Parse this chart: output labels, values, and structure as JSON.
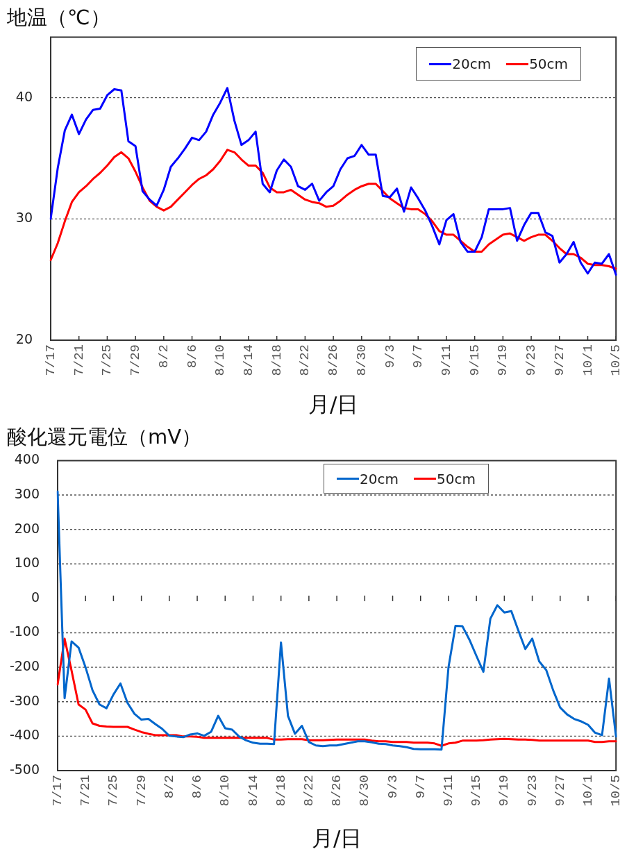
{
  "chart_data": [
    {
      "type": "line",
      "ylabel": "地温（℃）",
      "xlabel": "月/日",
      "categories": [
        "7/17",
        null,
        null,
        null,
        "7/21",
        null,
        null,
        null,
        "7/25",
        null,
        null,
        null,
        "7/29",
        null,
        null,
        null,
        "8/2",
        null,
        null,
        null,
        "8/6",
        null,
        null,
        null,
        "8/10",
        null,
        null,
        null,
        "8/14",
        null,
        null,
        null,
        "8/18",
        null,
        null,
        null,
        "8/22",
        null,
        null,
        null,
        "8/26",
        null,
        null,
        null,
        "8/30",
        null,
        null,
        null,
        "9/3",
        null,
        null,
        null,
        "9/7",
        null,
        null,
        null,
        "9/11",
        null,
        null,
        null,
        "9/15",
        null,
        null,
        null,
        "9/19",
        null,
        null,
        null,
        "9/23",
        null,
        null,
        null,
        "9/27",
        null,
        null,
        null,
        "10/1",
        null,
        null,
        null,
        "10/5"
      ],
      "series": [
        {
          "name": "20cm",
          "color": "#0000ff",
          "values": [
            30.0,
            34.2,
            37.3,
            38.6,
            37.0,
            38.2,
            39.0,
            39.1,
            40.2,
            40.7,
            40.6,
            36.4,
            36.0,
            32.3,
            31.6,
            31.1,
            32.4,
            34.3,
            35.0,
            35.8,
            36.7,
            36.5,
            37.2,
            38.6,
            39.6,
            40.8,
            38.1,
            36.1,
            36.5,
            37.2,
            32.9,
            32.2,
            34.0,
            34.9,
            34.3,
            32.7,
            32.4,
            32.9,
            31.5,
            32.2,
            32.7,
            34.1,
            35.0,
            35.2,
            36.1,
            35.3,
            35.3,
            31.9,
            31.8,
            32.5,
            30.6,
            32.6,
            31.7,
            30.7,
            29.4,
            27.9,
            29.9,
            30.4,
            28.1,
            27.3,
            27.3,
            28.5,
            30.8,
            30.8,
            30.8,
            30.9,
            28.2,
            29.5,
            30.5,
            30.5,
            28.9,
            28.6,
            26.4,
            27.1,
            28.1,
            26.4,
            25.5,
            26.4,
            26.3,
            27.1,
            25.4
          ]
        },
        {
          "name": "50cm",
          "color": "#ff0000",
          "values": [
            26.6,
            28.0,
            29.8,
            31.4,
            32.2,
            32.7,
            33.3,
            33.8,
            34.4,
            35.1,
            35.5,
            35.0,
            33.9,
            32.6,
            31.5,
            31.0,
            30.7,
            31.0,
            31.6,
            32.2,
            32.8,
            33.3,
            33.6,
            34.1,
            34.8,
            35.7,
            35.5,
            34.9,
            34.4,
            34.4,
            33.8,
            32.6,
            32.2,
            32.2,
            32.4,
            32.0,
            31.6,
            31.4,
            31.3,
            31.0,
            31.1,
            31.5,
            32.0,
            32.4,
            32.7,
            32.9,
            32.9,
            32.3,
            31.7,
            31.3,
            30.9,
            30.8,
            30.8,
            30.4,
            29.8,
            29.0,
            28.7,
            28.7,
            28.2,
            27.7,
            27.3,
            27.3,
            27.9,
            28.3,
            28.7,
            28.8,
            28.5,
            28.2,
            28.5,
            28.7,
            28.7,
            28.2,
            27.6,
            27.1,
            27.1,
            26.8,
            26.3,
            26.2,
            26.2,
            26.1,
            25.9
          ]
        }
      ],
      "ylim": [
        20,
        45
      ],
      "yticks": [
        20,
        30,
        40
      ],
      "grid": "y",
      "legend": "top right"
    },
    {
      "type": "line",
      "ylabel": "酸化還元電位（mV）",
      "xlabel": "月/日",
      "categories": [
        "7/17",
        null,
        null,
        null,
        "7/21",
        null,
        null,
        null,
        "7/25",
        null,
        null,
        null,
        "7/29",
        null,
        null,
        null,
        "8/2",
        null,
        null,
        null,
        "8/6",
        null,
        null,
        null,
        "8/10",
        null,
        null,
        null,
        "8/14",
        null,
        null,
        null,
        "8/18",
        null,
        null,
        null,
        "8/22",
        null,
        null,
        null,
        "8/26",
        null,
        null,
        null,
        "8/30",
        null,
        null,
        null,
        "9/3",
        null,
        null,
        null,
        "9/7",
        null,
        null,
        null,
        "9/11",
        null,
        null,
        null,
        "9/15",
        null,
        null,
        null,
        "9/19",
        null,
        null,
        null,
        "9/23",
        null,
        null,
        null,
        "9/27",
        null,
        null,
        null,
        "10/1",
        null,
        null,
        null,
        "10/5"
      ],
      "series": [
        {
          "name": "20cm",
          "color": "#0066cc",
          "values": [
            310,
            -290,
            -125,
            -143,
            -200,
            -267,
            -308,
            -319,
            -279,
            -247,
            -303,
            -335,
            -352,
            -350,
            -365,
            -379,
            -399,
            -401,
            -403,
            -395,
            -392,
            -399,
            -387,
            -341,
            -377,
            -381,
            -401,
            -412,
            -419,
            -422,
            -422,
            -423,
            -128,
            -341,
            -393,
            -370,
            -417,
            -427,
            -429,
            -427,
            -427,
            -423,
            -419,
            -415,
            -415,
            -418,
            -422,
            -423,
            -427,
            -429,
            -432,
            -437,
            -438,
            -438,
            -438,
            -439,
            -200,
            -80,
            -81,
            -120,
            -167,
            -213,
            -59,
            -20,
            -41,
            -37,
            -93,
            -147,
            -117,
            -183,
            -208,
            -267,
            -317,
            -337,
            -350,
            -357,
            -367,
            -390,
            -397,
            -233,
            -401
          ]
        },
        {
          "name": "50cm",
          "color": "#ff0000",
          "values": [
            -250,
            -117,
            -210,
            -308,
            -323,
            -363,
            -370,
            -372,
            -373,
            -373,
            -373,
            -381,
            -388,
            -393,
            -397,
            -397,
            -397,
            -397,
            -401,
            -401,
            -402,
            -405,
            -405,
            -405,
            -405,
            -405,
            -405,
            -405,
            -405,
            -405,
            -405,
            -410,
            -410,
            -409,
            -409,
            -409,
            -412,
            -412,
            -412,
            -411,
            -410,
            -410,
            -410,
            -410,
            -410,
            -413,
            -415,
            -415,
            -417,
            -417,
            -417,
            -419,
            -419,
            -419,
            -421,
            -428,
            -421,
            -419,
            -413,
            -413,
            -413,
            -412,
            -410,
            -409,
            -408,
            -409,
            -410,
            -410,
            -411,
            -413,
            -413,
            -413,
            -413,
            -413,
            -413,
            -413,
            -413,
            -417,
            -417,
            -415,
            -415
          ]
        }
      ],
      "ylim": [
        -500,
        400
      ],
      "yticks": [
        -500,
        -400,
        -300,
        -200,
        -100,
        0,
        100,
        200,
        300,
        400
      ],
      "grid": "y",
      "legend": "top"
    }
  ]
}
